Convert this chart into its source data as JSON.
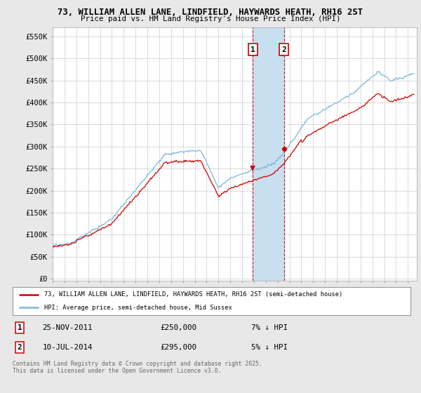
{
  "title1": "73, WILLIAM ALLEN LANE, LINDFIELD, HAYWARDS HEATH, RH16 2ST",
  "title2": "Price paid vs. HM Land Registry's House Price Index (HPI)",
  "ylabel_ticks": [
    "£0",
    "£50K",
    "£100K",
    "£150K",
    "£200K",
    "£250K",
    "£300K",
    "£350K",
    "£400K",
    "£450K",
    "£500K",
    "£550K"
  ],
  "ytick_vals": [
    0,
    50000,
    100000,
    150000,
    200000,
    250000,
    300000,
    350000,
    400000,
    450000,
    500000,
    550000
  ],
  "ylim": [
    -5000,
    570000
  ],
  "hpi_color": "#7ab8d9",
  "price_color": "#cc0000",
  "background_color": "#e8e8e8",
  "plot_bg_color": "#ffffff",
  "ann1_x": 2011.9,
  "ann1_y": 250000,
  "ann2_x": 2014.53,
  "ann2_y": 295000,
  "ann_box_color": "#cc0000",
  "span_color": "#c8dff0",
  "legend_label_price": "73, WILLIAM ALLEN LANE, LINDFIELD, HAYWARDS HEATH, RH16 2ST (semi-detached house)",
  "legend_label_hpi": "HPI: Average price, semi-detached house, Mid Sussex",
  "footer": "Contains HM Land Registry data © Crown copyright and database right 2025.\nThis data is licensed under the Open Government Licence v3.0.",
  "xmin": 1995,
  "xmax": 2025.75
}
